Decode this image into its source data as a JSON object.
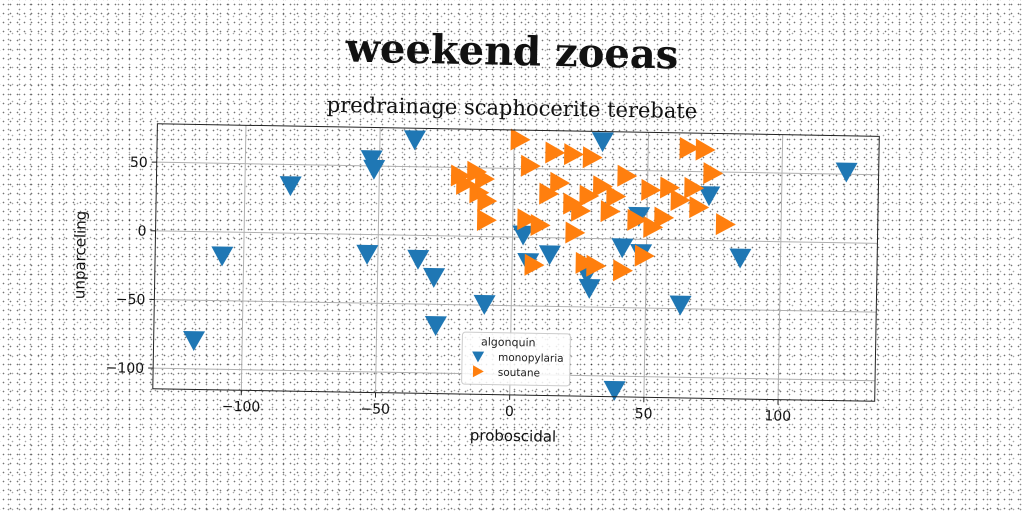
{
  "suptitle": "weekend zoeas",
  "chart_data": {
    "type": "scatter",
    "title": "predrainage scaphocerite terebate",
    "xlabel": "proboscidal",
    "ylabel": "unparceling",
    "xlim": [
      -133,
      136
    ],
    "ylim": [
      -115,
      78
    ],
    "xticks": [
      -100,
      -50,
      0,
      50,
      100
    ],
    "yticks": [
      -100,
      -50,
      0,
      50
    ],
    "xtick_labels": [
      "−100",
      "−50",
      "0",
      "50",
      "100"
    ],
    "ytick_labels": [
      "−100",
      "−50",
      "0",
      "50"
    ],
    "grid": true,
    "legend": {
      "title": "algonquin",
      "placement": "lower center"
    },
    "series": [
      {
        "name": "monopylaria",
        "marker": "triangle-down",
        "color": "#1f77b4",
        "points": [
          [
            -118,
            -79
          ],
          [
            -108,
            -17
          ],
          [
            -83,
            35
          ],
          [
            -53,
            55
          ],
          [
            -52,
            48
          ],
          [
            -54,
            -14
          ],
          [
            -37,
            70
          ],
          [
            -35,
            -17
          ],
          [
            -29,
            -30
          ],
          [
            -28,
            -65
          ],
          [
            -10,
            -49
          ],
          [
            4,
            2
          ],
          [
            6,
            -18
          ],
          [
            14,
            -12
          ],
          [
            28,
            -26
          ],
          [
            29,
            -36
          ],
          [
            33,
            71
          ],
          [
            41,
            -6
          ],
          [
            47,
            17
          ],
          [
            48,
            -10
          ],
          [
            63,
            -47
          ],
          [
            73,
            33
          ],
          [
            85,
            -12
          ],
          [
            124,
            52
          ],
          [
            39,
            -110
          ]
        ]
      },
      {
        "name": "soutane",
        "marker": "triangle-right",
        "color": "#ff7f0e",
        "points": [
          [
            -20,
            44
          ],
          [
            -18,
            38
          ],
          [
            -14,
            47
          ],
          [
            -11,
            42
          ],
          [
            -13,
            32
          ],
          [
            -10,
            26
          ],
          [
            -10,
            12
          ],
          [
            2,
            71
          ],
          [
            5,
            13
          ],
          [
            6,
            52
          ],
          [
            8,
            -20
          ],
          [
            10,
            9
          ],
          [
            13,
            32
          ],
          [
            15,
            62
          ],
          [
            17,
            40
          ],
          [
            22,
            25
          ],
          [
            22,
            61
          ],
          [
            23,
            4
          ],
          [
            25,
            20
          ],
          [
            27,
            -18
          ],
          [
            28,
            31
          ],
          [
            29,
            59
          ],
          [
            31,
            -20
          ],
          [
            33,
            38
          ],
          [
            36,
            20
          ],
          [
            38,
            31
          ],
          [
            41,
            -23
          ],
          [
            42,
            46
          ],
          [
            46,
            14
          ],
          [
            49,
            -12
          ],
          [
            51,
            36
          ],
          [
            52,
            9
          ],
          [
            56,
            16
          ],
          [
            58,
            38
          ],
          [
            62,
            29
          ],
          [
            65,
            67
          ],
          [
            67,
            38
          ],
          [
            69,
            24
          ],
          [
            71,
            66
          ],
          [
            74,
            49
          ],
          [
            79,
            12
          ]
        ]
      }
    ]
  }
}
